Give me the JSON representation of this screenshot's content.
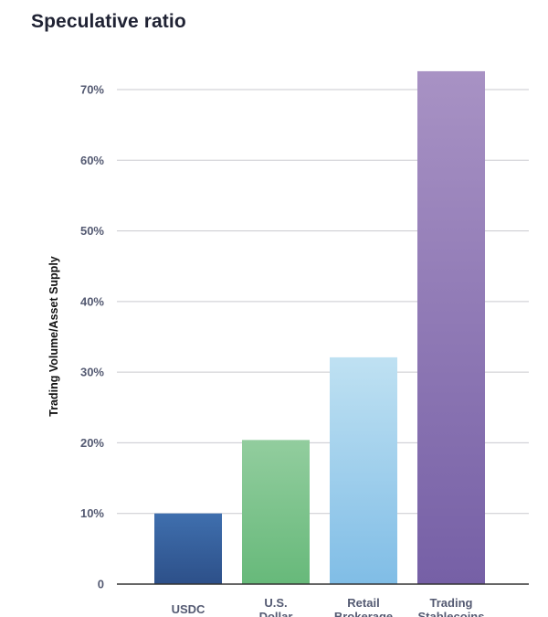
{
  "chart_data": {
    "type": "bar",
    "title": "Speculative ratio",
    "ylabel": "Trading Volume/Asset Supply",
    "xlabel": "",
    "categories": [
      [
        "USDC"
      ],
      [
        "U.S.",
        "Dollar"
      ],
      [
        "Retail",
        "Brokerage"
      ],
      [
        "Trading",
        "Stablecoins"
      ]
    ],
    "values": [
      10,
      20.4,
      32.1,
      72.6
    ],
    "ylim": [
      0,
      70
    ],
    "yticks": [
      0,
      10,
      20,
      30,
      40,
      50,
      60,
      70
    ],
    "ytick_labels": [
      "0",
      "10%",
      "20%",
      "30%",
      "40%",
      "50%",
      "60%",
      "70%"
    ],
    "grid": true,
    "bar_colors": [
      [
        "#3f6fae",
        "#2d5089"
      ],
      [
        "#92cd9e",
        "#67b97a"
      ],
      [
        "#bfe1f2",
        "#80bde6"
      ],
      [
        "#a892c4",
        "#7660a6"
      ]
    ],
    "colors": {
      "grid": "#c9c9cf",
      "axis": "#333333",
      "tick_text": "#545a72"
    }
  }
}
